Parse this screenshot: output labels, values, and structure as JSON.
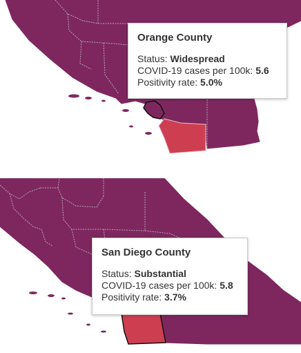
{
  "colors": {
    "widespread": "#7e275f",
    "substantial": "#cd3e51",
    "county_border": "#b6aab2",
    "selected_border": "#111111",
    "ocean": "#ffffff"
  },
  "panels": [
    {
      "tooltip": {
        "county": "Orange County",
        "status_label": "Status:",
        "status_value": "Widespread",
        "cases_label": "COVID-19 cases per 100k:",
        "cases_value": "5.6",
        "positivity_label": "Positivity rate:",
        "positivity_value": "5.0%"
      }
    },
    {
      "tooltip": {
        "county": "San Diego County",
        "status_label": "Status:",
        "status_value": "Substantial",
        "cases_label": "COVID-19 cases per 100k:",
        "cases_value": "5.8",
        "positivity_label": "Positivity rate:",
        "positivity_value": "3.7%"
      }
    }
  ]
}
